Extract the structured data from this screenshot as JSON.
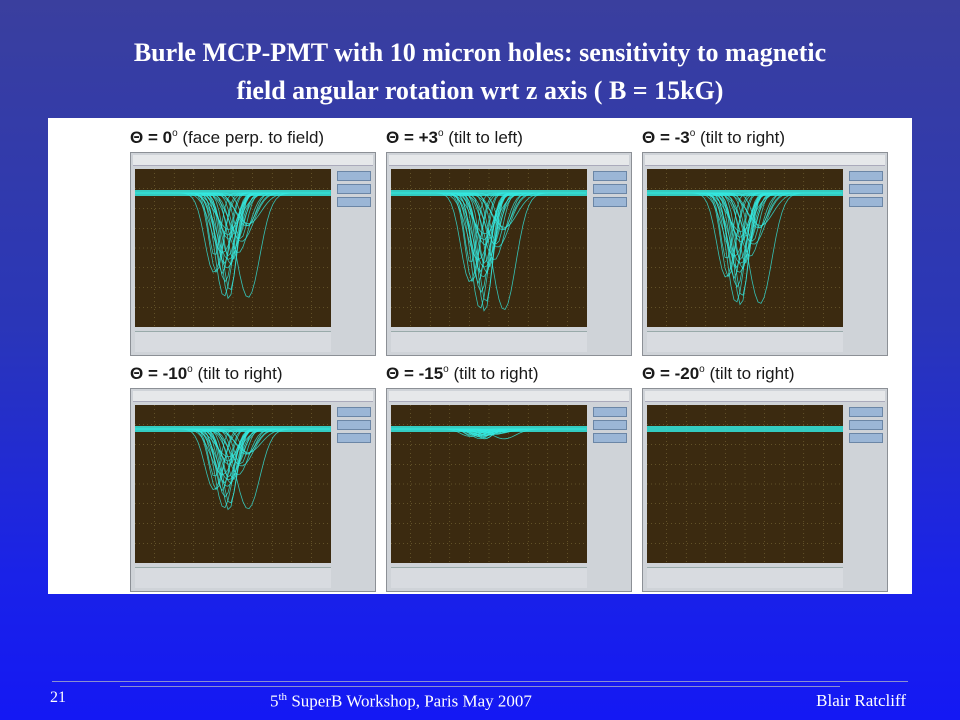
{
  "slide": {
    "title_line1": "Burle MCP-PMT with 10 micron holes: sensitivity to magnetic",
    "title_line2": "field angular rotation wrt z  axis ( B = 15kG)"
  },
  "panels": [
    {
      "theta": "Θ = 0",
      "sup": "o",
      "note": " (face perp. to field)",
      "amplitude": 1.0,
      "depth": 0.85
    },
    {
      "theta": "Θ = +3",
      "sup": "o",
      "note": " (tilt to left)",
      "amplitude": 1.0,
      "depth": 0.95
    },
    {
      "theta": "Θ = -3",
      "sup": "o",
      "note": " (tilt to right)",
      "amplitude": 1.0,
      "depth": 0.9
    },
    {
      "theta": "Θ = -10",
      "sup": "o",
      "note": " (tilt to right)",
      "amplitude": 0.6,
      "depth": 0.65
    },
    {
      "theta": "Θ = -15",
      "sup": "o",
      "note": " (tilt to right)",
      "amplitude": 0.08,
      "depth": 0.08
    },
    {
      "theta": "Θ = -20",
      "sup": "o",
      "note": " (tilt to right)",
      "amplitude": 0.0,
      "depth": 0.0
    }
  ],
  "footer": {
    "slide_number": "21",
    "ordinal": "5",
    "ordinal_suffix": "th",
    "event": " SuperB Workshop, Paris  May 2007",
    "author": "Blair Ratcliff"
  },
  "colors": {
    "trace": "#34e8e0",
    "screen": "#3b2a10",
    "grid": "#8a7a40"
  }
}
